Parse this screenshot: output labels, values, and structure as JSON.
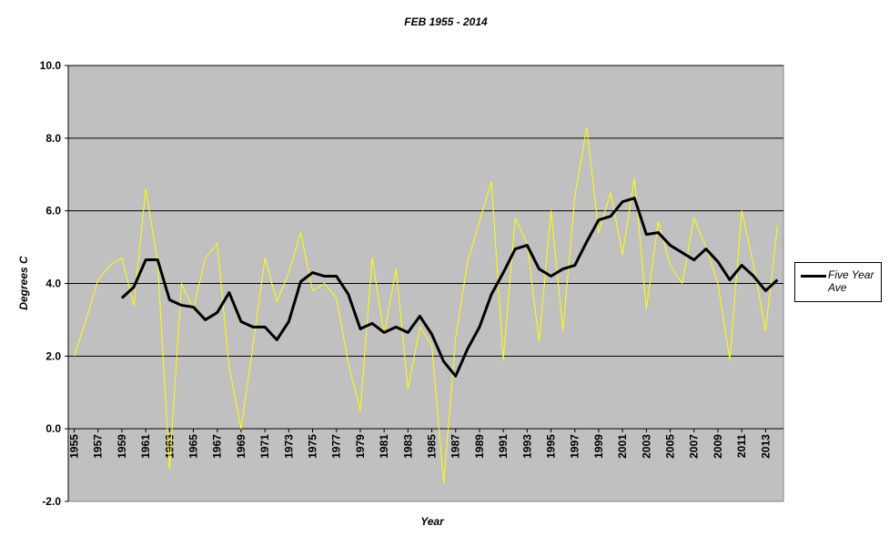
{
  "chart_data": {
    "type": "line",
    "title": "FEB 1955 - 2014",
    "x_label": "Year",
    "y_label": "Degrees C",
    "x": [
      1955,
      1956,
      1957,
      1958,
      1959,
      1960,
      1961,
      1962,
      1963,
      1964,
      1965,
      1966,
      1967,
      1968,
      1969,
      1970,
      1971,
      1972,
      1973,
      1974,
      1975,
      1976,
      1977,
      1978,
      1979,
      1980,
      1981,
      1982,
      1983,
      1984,
      1985,
      1986,
      1987,
      1988,
      1989,
      1990,
      1991,
      1992,
      1993,
      1994,
      1995,
      1996,
      1997,
      1998,
      1999,
      2000,
      2001,
      2002,
      2003,
      2004,
      2005,
      2006,
      2007,
      2008,
      2009,
      2010,
      2011,
      2012,
      2013,
      2014
    ],
    "xlim": [
      1954.5,
      2014.5
    ],
    "xticks": [
      1955,
      1957,
      1959,
      1961,
      1963,
      1965,
      1967,
      1969,
      1971,
      1973,
      1975,
      1977,
      1979,
      1981,
      1983,
      1985,
      1987,
      1989,
      1991,
      1993,
      1995,
      1997,
      1999,
      2001,
      2003,
      2005,
      2007,
      2009,
      2011,
      2013
    ],
    "ylim": [
      -2,
      10
    ],
    "yticks": [
      {
        "value": -2,
        "label": "-2.0"
      },
      {
        "value": 0,
        "label": "0.0"
      },
      {
        "value": 2,
        "label": "2.0"
      },
      {
        "value": 4,
        "label": "4.0"
      },
      {
        "value": 6,
        "label": "6.0"
      },
      {
        "value": 8,
        "label": "8.0"
      },
      {
        "value": 10,
        "label": "10.0"
      }
    ],
    "grid": true,
    "legend": "right",
    "series": [
      {
        "color": "#ffff00",
        "values": [
          2.0,
          3.0,
          4.1,
          4.5,
          4.7,
          3.4,
          6.6,
          4.6,
          -1.1,
          4.0,
          3.3,
          4.7,
          5.1,
          1.7,
          0.0,
          2.3,
          4.7,
          3.5,
          4.3,
          5.4,
          3.8,
          4.0,
          3.6,
          1.8,
          0.5,
          4.7,
          2.6,
          4.4,
          1.1,
          2.8,
          2.3,
          -1.5,
          2.5,
          4.6,
          5.7,
          6.8,
          1.9,
          5.8,
          5.1,
          2.4,
          6.0,
          2.7,
          6.4,
          8.3,
          5.4,
          6.5,
          4.8,
          6.9,
          3.3,
          5.7,
          4.5,
          4.0,
          5.8,
          5.0,
          4.0,
          1.9,
          6.0,
          4.5,
          2.7,
          5.6
        ]
      },
      {
        "name": "Five Year Ave",
        "color": "#000000",
        "values": [
          null,
          null,
          null,
          null,
          3.6,
          3.9,
          4.65,
          4.65,
          3.55,
          3.4,
          3.35,
          3.0,
          3.2,
          3.75,
          2.95,
          2.8,
          2.8,
          2.45,
          2.95,
          4.05,
          4.3,
          4.2,
          4.2,
          3.7,
          2.75,
          2.9,
          2.65,
          2.8,
          2.65,
          3.1,
          2.6,
          1.85,
          1.45,
          2.2,
          2.8,
          3.7,
          4.3,
          4.95,
          5.05,
          4.4,
          4.2,
          4.4,
          4.5,
          5.15,
          5.75,
          5.85,
          6.25,
          6.35,
          5.35,
          5.4,
          5.05,
          4.85,
          4.65,
          4.95,
          4.6,
          4.1,
          4.5,
          4.2,
          3.8,
          4.1
        ]
      }
    ]
  }
}
